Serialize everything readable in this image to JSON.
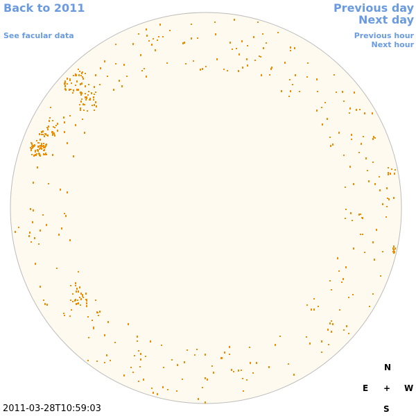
{
  "links": {
    "back": "Back to 2011",
    "facular": "See facular data",
    "previous_day": "Previous day",
    "next_day": "Next day",
    "previous_hour": "Previous hour",
    "next_hour": "Next hour"
  },
  "compass": {
    "north": "N",
    "east": "E",
    "center": "+",
    "west": "W",
    "south": "S"
  },
  "timestamp": "2011-03-28T10:59:03"
}
